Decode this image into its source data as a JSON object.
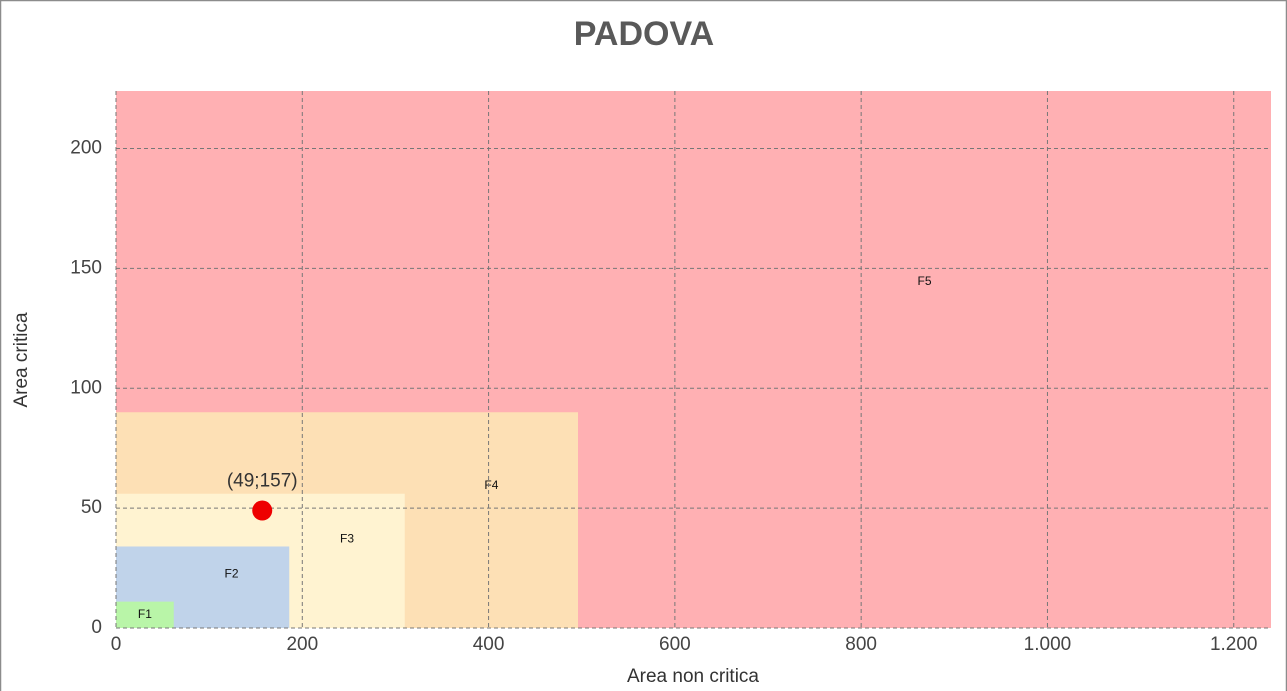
{
  "chart_data": {
    "type": "scatter",
    "title": "PADOVA",
    "x_label": "Area non critica",
    "y_label": "Area critica",
    "xlim": [
      0,
      1240
    ],
    "ylim": [
      0,
      224
    ],
    "xticks": [
      0,
      200,
      400,
      600,
      800,
      {
        "value": 1000,
        "label": "1.000"
      },
      {
        "value": 1200,
        "label": "1.200"
      }
    ],
    "yticks": [
      0,
      50,
      100,
      150,
      200
    ],
    "grid": true,
    "regions": [
      {
        "name": "F1",
        "x": 62,
        "y": 11,
        "color": "#b9f5a8"
      },
      {
        "name": "F2",
        "x": 186,
        "y": 34,
        "color": "#c0d3ea"
      },
      {
        "name": "F3",
        "x": 310,
        "y": 56,
        "color": "#fff3d1"
      },
      {
        "name": "F4",
        "x": 496,
        "y": 90,
        "color": "#fde0b5"
      },
      {
        "name": "F5",
        "x": 1240,
        "y": 224,
        "color": "#ffb0b3"
      }
    ],
    "points": {
      "x": [
        157
      ],
      "values": [
        49
      ],
      "value_labels": [
        "(49;157)"
      ],
      "color": "#ee0000"
    }
  }
}
